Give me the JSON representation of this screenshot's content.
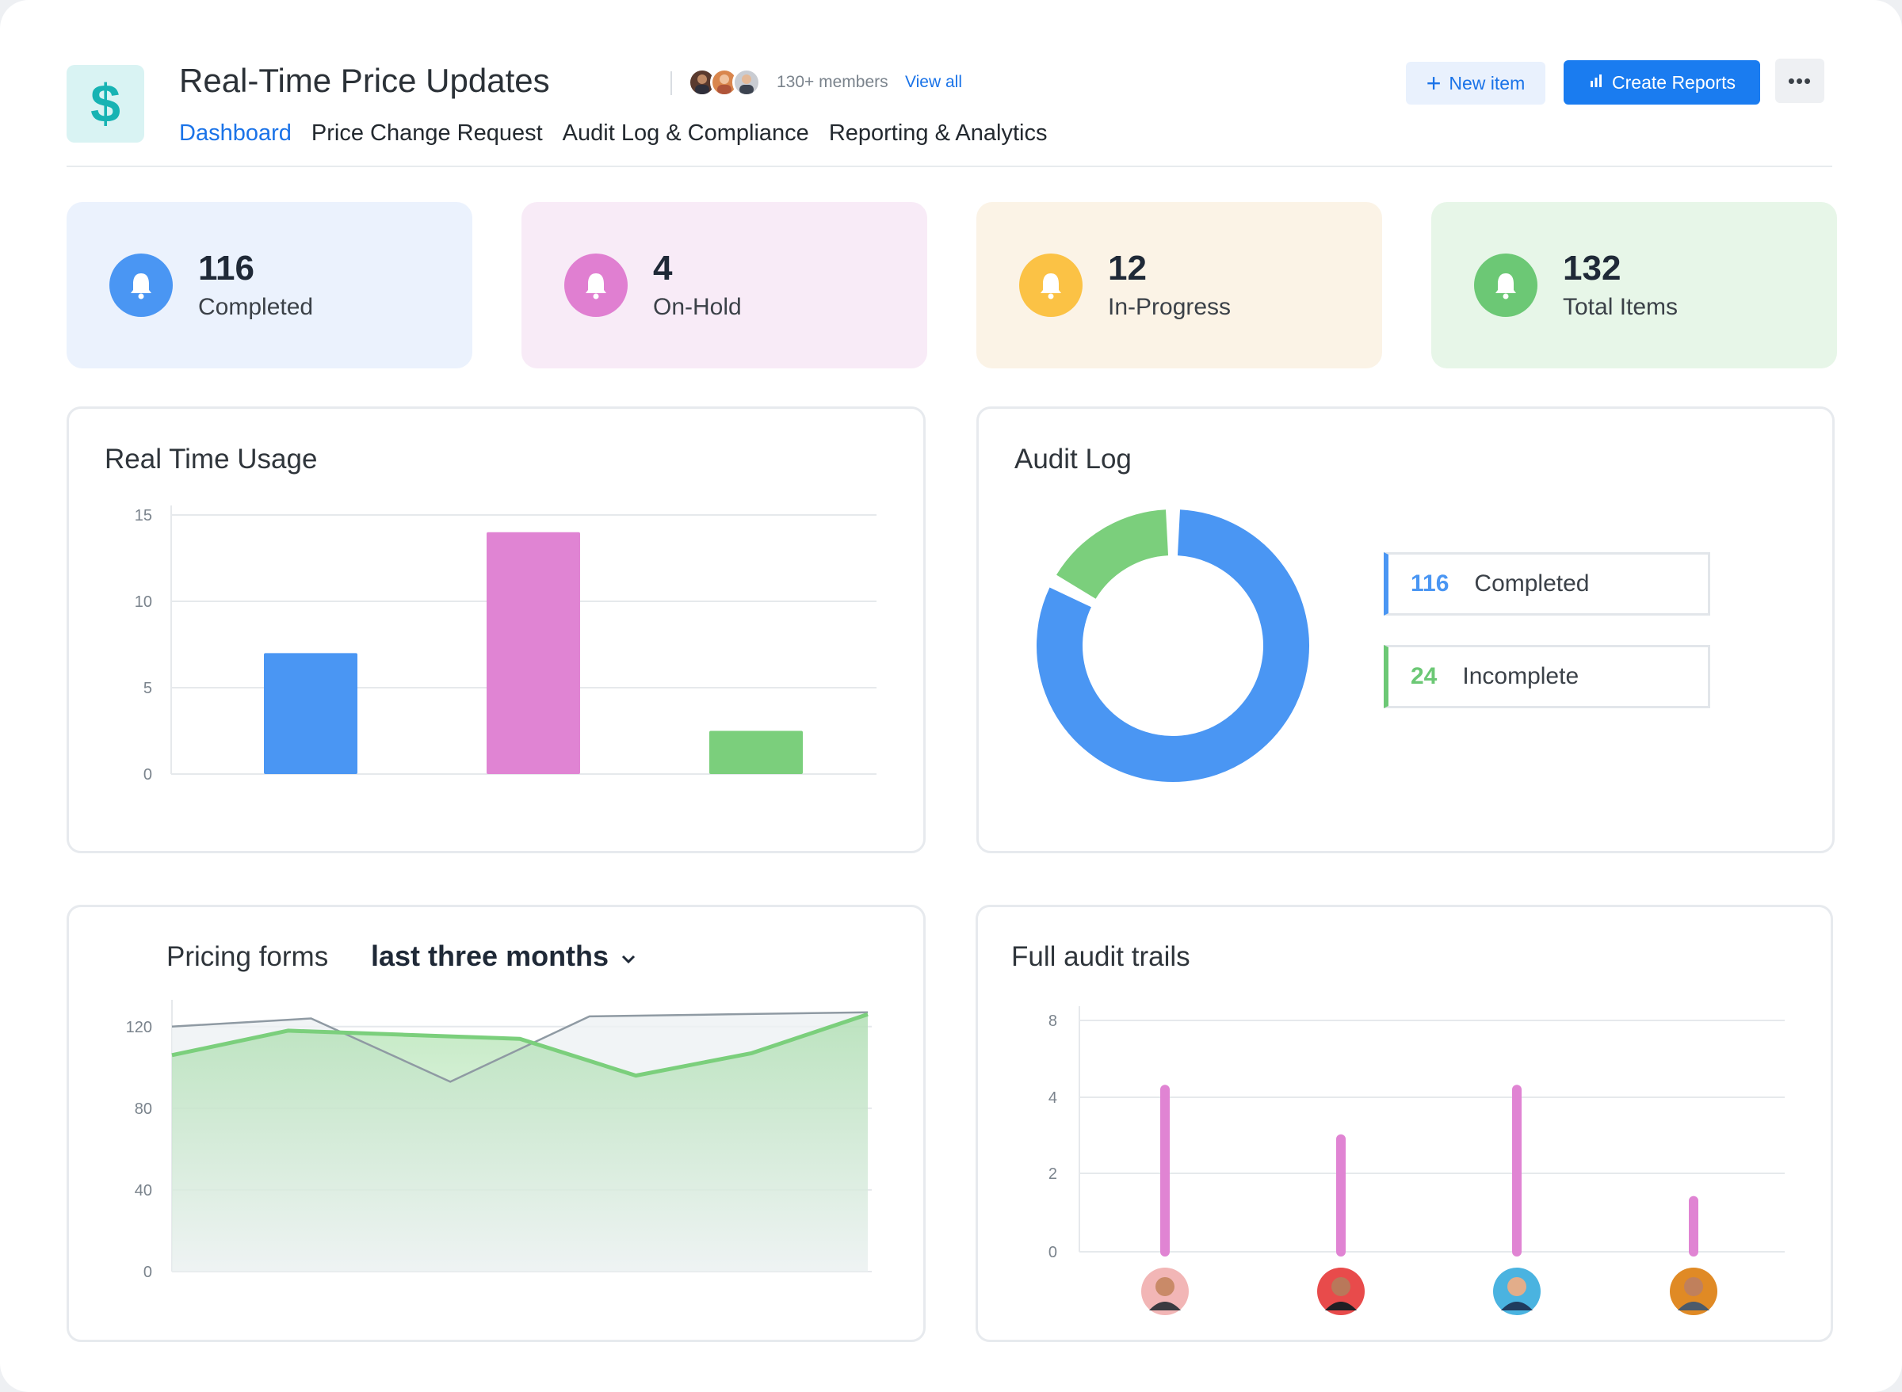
{
  "header": {
    "logo_glyph": "$",
    "title": "Real-Time Price Updates",
    "members_text": "130+ members",
    "view_all": "View all",
    "new_item": "New item",
    "create_reports": "Create Reports",
    "more": "•••"
  },
  "tabs": [
    {
      "label": "Dashboard",
      "active": true
    },
    {
      "label": "Price Change Request",
      "active": false
    },
    {
      "label": "Audit Log & Compliance",
      "active": false
    },
    {
      "label": "Reporting & Analytics",
      "active": false
    }
  ],
  "stats": [
    {
      "value": "116",
      "label": "Completed",
      "color": "#4a96f3",
      "bg": "#ebf2fd",
      "icon": "bell-icon"
    },
    {
      "value": "4",
      "label": "On-Hold",
      "color": "#e07fd1",
      "bg": "#f8ebf7",
      "icon": "bell-icon"
    },
    {
      "value": "12",
      "label": "In-Progress",
      "color": "#fbc245",
      "bg": "#fbf3e6",
      "icon": "bell-icon"
    },
    {
      "value": "132",
      "label": "Total Items",
      "color": "#6cc875",
      "bg": "#e7f6e8",
      "icon": "bell-icon"
    }
  ],
  "real_time_usage": {
    "title": "Real Time Usage"
  },
  "audit_log": {
    "title": "Audit Log",
    "items": [
      {
        "value": "116",
        "label": "Completed",
        "color": "#4a96f3"
      },
      {
        "value": "24",
        "label": "Incomplete",
        "color": "#6cc875"
      }
    ]
  },
  "pricing_forms": {
    "title": "Pricing forms",
    "period": "last three months"
  },
  "full_audit_trails": {
    "title": "Full audit trails"
  },
  "chart_data": [
    {
      "type": "bar",
      "title": "Real Time Usage",
      "categories": [
        "",
        "",
        ""
      ],
      "values": [
        7,
        14,
        2.5
      ],
      "colors": [
        "#4a96f3",
        "#e084d3",
        "#7bcf7c"
      ],
      "ylim": [
        0,
        15
      ],
      "yticks": [
        0,
        5,
        10,
        15
      ],
      "grid": true
    },
    {
      "type": "pie",
      "title": "Audit Log",
      "donut": true,
      "slices": [
        {
          "label": "Completed",
          "value": 116,
          "color": "#4a96f3"
        },
        {
          "label": "Incomplete",
          "value": 24,
          "color": "#7bcf7c"
        }
      ]
    },
    {
      "type": "area",
      "title": "Pricing forms",
      "ylim": [
        0,
        130
      ],
      "yticks": [
        0,
        40,
        80,
        120
      ],
      "grid": true,
      "series": [
        {
          "values": [
            106,
            118,
            116,
            114,
            96,
            107,
            126
          ],
          "color": "#7bcf7c",
          "fill": true
        },
        {
          "values": [
            120,
            124,
            93,
            125,
            126,
            127
          ],
          "color": "#8f9aa3",
          "fill": true
        }
      ]
    },
    {
      "type": "bar",
      "title": "Full audit trails",
      "categories": [
        "",
        "",
        "",
        ""
      ],
      "values": [
        4.4,
        2.9,
        4.4,
        1.3
      ],
      "color": "#e084d3",
      "yticks": [
        0,
        2,
        4,
        8
      ],
      "grid": true
    }
  ]
}
